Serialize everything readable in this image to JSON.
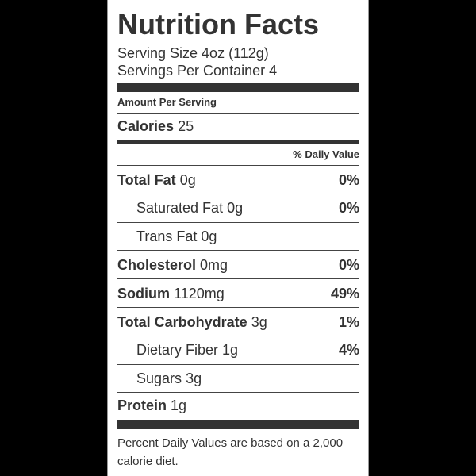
{
  "title": "Nutrition Facts",
  "serving_size": "Serving Size 4oz (112g)",
  "servings_per_container": "Servings Per Container 4",
  "amount_per_serving": "Amount Per Serving",
  "calories": {
    "label": "Calories",
    "value": "25"
  },
  "daily_value_header": "% Daily Value",
  "rows": [
    {
      "label": "Total Fat",
      "amount": "0g",
      "daily_value": "0%"
    },
    {
      "label": "Saturated Fat",
      "amount": "0g",
      "daily_value": "0%",
      "sub": true
    },
    {
      "label": "Trans Fat",
      "amount": "0g",
      "sub": true
    },
    {
      "label": "Cholesterol",
      "amount": "0mg",
      "daily_value": "0%"
    },
    {
      "label": "Sodium",
      "amount": "1120mg",
      "daily_value": "49%"
    },
    {
      "label": "Total Carbohydrate",
      "amount": "3g",
      "daily_value": "1%"
    },
    {
      "label": "Dietary Fiber",
      "amount": "1g",
      "daily_value": "4%",
      "sub": true
    },
    {
      "label": "Sugars",
      "amount": "3g",
      "sub": true
    },
    {
      "label": "Protein",
      "amount": "1g"
    }
  ],
  "footnote": "Percent Daily Values are based on a 2,000 calorie diet."
}
